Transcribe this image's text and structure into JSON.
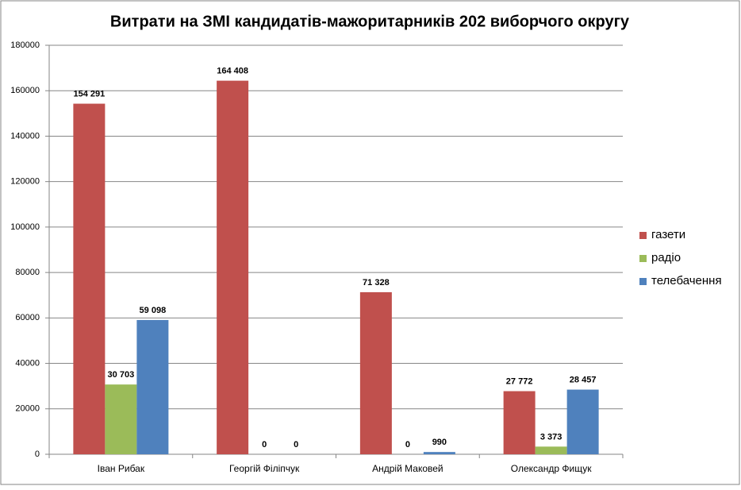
{
  "chart_data": {
    "type": "bar",
    "title": "Витрати на ЗМІ кандидатів-мажоритарників 202 виборчого округу",
    "categories": [
      "Іван Рибак",
      "Георгій Філіпчук",
      "Андрій Маковей",
      "Олександр Фищук"
    ],
    "series": [
      {
        "name": "газети",
        "color": "#c0504d",
        "values": [
          154291,
          164408,
          71328,
          27772
        ],
        "value_labels": [
          "154 291",
          "164 408",
          "71 328",
          "27 772"
        ]
      },
      {
        "name": "радіо",
        "color": "#9bbb59",
        "values": [
          30703,
          0,
          0,
          3373
        ],
        "value_labels": [
          "30 703",
          "0",
          "0",
          "3 373"
        ]
      },
      {
        "name": "телебачення",
        "color": "#4f81bd",
        "values": [
          59098,
          0,
          990,
          28457
        ],
        "value_labels": [
          "59 098",
          "0",
          "990",
          "28 457"
        ]
      }
    ],
    "ylim": [
      0,
      180000
    ],
    "yticks": [
      0,
      20000,
      40000,
      60000,
      80000,
      100000,
      120000,
      140000,
      160000,
      180000
    ],
    "grid": true,
    "legend": "right"
  }
}
